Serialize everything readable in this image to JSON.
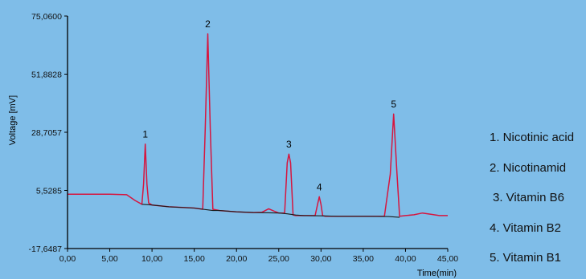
{
  "chart_data": {
    "type": "line",
    "xlabel": "Time(min)",
    "ylabel": "Voltage [mV]",
    "xlim": [
      0,
      45
    ],
    "ylim": [
      -17.6487,
      75.06
    ],
    "x_ticks": [
      "0,00",
      "5,00",
      "10,00",
      "15,00",
      "20,00",
      "25,00",
      "30,00",
      "35,00",
      "40,00",
      "45,00"
    ],
    "y_ticks": [
      "75,0600",
      "51,8828",
      "28,7057",
      "5,5285",
      "-17,6487"
    ],
    "grid": false,
    "series": [
      {
        "color": "#d6163f",
        "x": [
          0,
          3,
          5,
          7,
          8,
          8.8,
          9.0,
          9.2,
          9.4,
          9.6,
          10,
          12,
          15,
          16.0,
          16.3,
          16.6,
          16.9,
          17.2,
          18,
          20,
          22,
          23,
          23.8,
          24.5,
          25,
          25.7,
          26.0,
          26.2,
          26.4,
          26.7,
          27,
          28,
          29.3,
          29.6,
          29.8,
          30.0,
          30.2,
          30.5,
          32,
          35,
          37.5,
          38.2,
          38.6,
          39.0,
          39.3,
          40,
          41,
          42,
          43,
          44,
          45
        ],
        "y": [
          4,
          4,
          4,
          3.8,
          1.5,
          0,
          8,
          24,
          8,
          0.5,
          -0.3,
          -1,
          -1.5,
          -2,
          30,
          68,
          30,
          -2,
          -2.5,
          -3,
          -3.3,
          -3.2,
          -1.8,
          -2.8,
          -3.5,
          -3.5,
          16.5,
          20,
          16.5,
          -4.3,
          -4.5,
          -4.5,
          -4.5,
          0,
          3,
          0,
          -4.5,
          -4.8,
          -4.8,
          -4.8,
          -4.8,
          12,
          36,
          12,
          -4.8,
          -4.5,
          -4.2,
          -3.5,
          -4,
          -4.5,
          -4.5
        ]
      },
      {
        "color": "#1a1a1a",
        "x": [
          8.8,
          10,
          12,
          15,
          16,
          17.2,
          18,
          20,
          22,
          25,
          26,
          27,
          28,
          30,
          32,
          35,
          38,
          39.3
        ],
        "y": [
          0,
          -0.3,
          -1,
          -1.5,
          -2,
          -2.5,
          -2.5,
          -3,
          -3.3,
          -3.5,
          -3.8,
          -4.3,
          -4.5,
          -4.6,
          -4.8,
          -4.8,
          -4.9,
          -5.2
        ]
      }
    ],
    "annotations": [
      {
        "text": "1",
        "x": 9.2,
        "y": 24
      },
      {
        "text": "2",
        "x": 16.6,
        "y": 68
      },
      {
        "text": "3",
        "x": 26.2,
        "y": 20
      },
      {
        "text": "4",
        "x": 29.8,
        "y": 3
      },
      {
        "text": "5",
        "x": 38.6,
        "y": 36
      }
    ],
    "legend": [
      "1. Nicotinic acid",
      "2. Nicotinamid",
      "3. Vitamin B6",
      "4. Vitamin B2",
      "5. Vitamin B1"
    ],
    "legend_position": "right"
  }
}
